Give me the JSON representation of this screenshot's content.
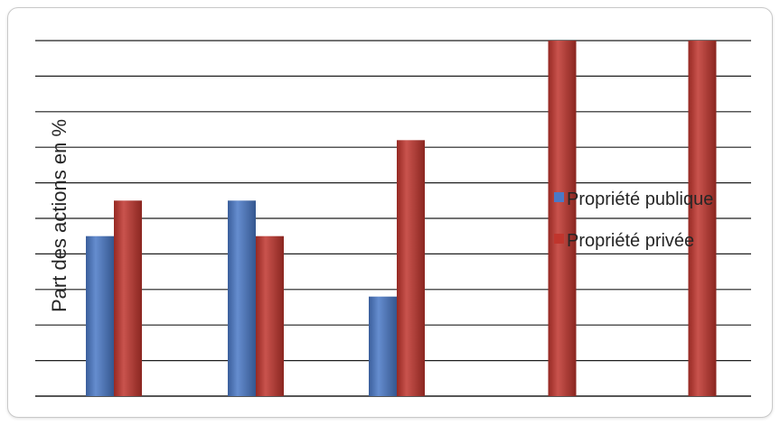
{
  "chart_data": {
    "type": "bar",
    "title": "",
    "xlabel": "",
    "ylabel": "Part des actions en %",
    "ylim": [
      0,
      100
    ],
    "grid": true,
    "legend_position": "right",
    "series": [
      {
        "name": "Propriété publique",
        "color": "#4a79c7",
        "values": [
          45,
          55,
          28,
          null,
          null
        ]
      },
      {
        "name": "Propriété privée",
        "color": "#c0352d",
        "values": [
          55,
          45,
          72,
          100,
          100
        ]
      }
    ],
    "categories_count": 5
  }
}
